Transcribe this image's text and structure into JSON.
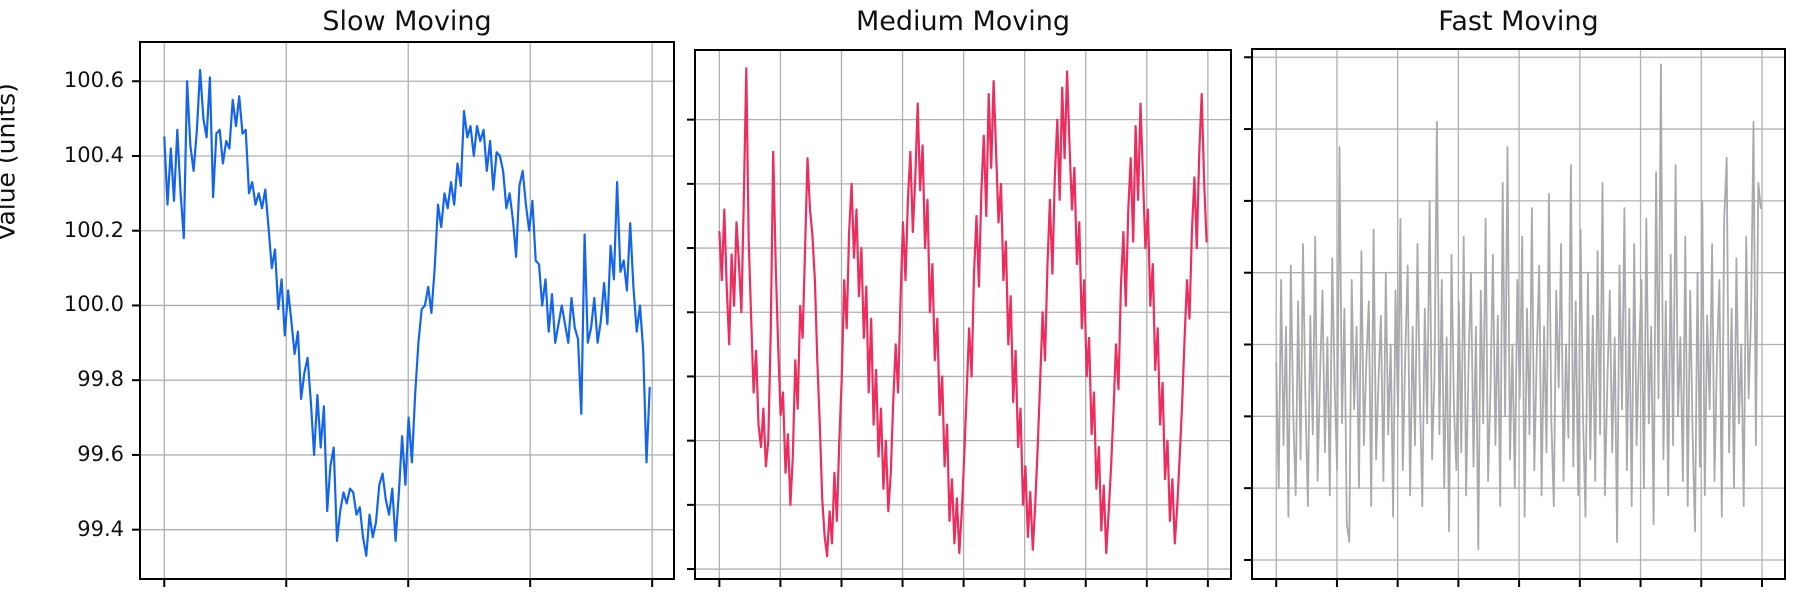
{
  "figure": {
    "background": "#ffffff"
  },
  "y_axis": {
    "label": "Value (units)",
    "tick_labels": [
      "100.6",
      "100.4",
      "100.2",
      "100.0",
      "99.8",
      "99.6",
      "99.4"
    ]
  },
  "grid": {
    "color": "#b0b0b0"
  },
  "spine_color": "#000000",
  "chart_data": [
    {
      "type": "line",
      "title": "Slow Moving",
      "color": "#1565ec",
      "line_width": 2.2,
      "x_count": 200,
      "xtick_step": 50,
      "ylim": [
        99.268,
        100.705
      ],
      "yticks": [
        99.4,
        99.6,
        99.8,
        100.0,
        100.2,
        100.4,
        100.6
      ],
      "ytick_labels_visible": true,
      "grid_on": true,
      "legend": "none",
      "values": [
        100.45,
        100.27,
        100.42,
        100.28,
        100.47,
        100.3,
        100.18,
        100.6,
        100.43,
        100.36,
        100.47,
        100.63,
        100.5,
        100.45,
        100.61,
        100.29,
        100.46,
        100.47,
        100.38,
        100.44,
        100.42,
        100.55,
        100.48,
        100.56,
        100.46,
        100.47,
        100.3,
        100.33,
        100.27,
        100.3,
        100.26,
        100.31,
        100.21,
        100.1,
        100.15,
        99.99,
        100.07,
        99.92,
        100.04,
        99.96,
        99.87,
        99.93,
        99.75,
        99.82,
        99.86,
        99.74,
        99.6,
        99.76,
        99.62,
        99.73,
        99.45,
        99.57,
        99.62,
        99.37,
        99.45,
        99.5,
        99.47,
        99.51,
        99.5,
        99.44,
        99.46,
        99.38,
        99.33,
        99.44,
        99.38,
        99.42,
        99.52,
        99.55,
        99.48,
        99.44,
        99.51,
        99.37,
        99.5,
        99.65,
        99.52,
        99.7,
        99.58,
        99.76,
        99.9,
        99.99,
        100.0,
        100.05,
        99.98,
        100.1,
        100.27,
        100.21,
        100.3,
        100.26,
        100.33,
        100.27,
        100.38,
        100.32,
        100.52,
        100.45,
        100.48,
        100.4,
        100.48,
        100.44,
        100.47,
        100.36,
        100.44,
        100.31,
        100.41,
        100.4,
        100.36,
        100.26,
        100.3,
        100.23,
        100.13,
        100.32,
        100.36,
        100.27,
        100.2,
        100.28,
        100.12,
        100.11,
        100.0,
        100.07,
        99.93,
        100.03,
        99.9,
        99.95,
        100.0,
        99.95,
        99.9,
        100.02,
        99.94,
        99.91,
        99.71,
        100.19,
        99.9,
        99.94,
        100.02,
        99.9,
        99.96,
        100.06,
        99.95,
        100.16,
        100.07,
        100.33,
        100.09,
        100.12,
        100.04,
        100.22,
        100.05,
        99.93,
        100.0,
        99.88,
        99.58,
        99.78
      ]
    },
    {
      "type": "line",
      "title": "Medium Moving",
      "color": "#ec2d5e",
      "line_width": 2.2,
      "x_count": 400,
      "xtick_step": 50,
      "ylim": [
        99.369,
        101.017
      ],
      "yticks": [
        99.4,
        99.6,
        99.8,
        100.0,
        100.2,
        100.4,
        100.6,
        100.8
      ],
      "ytick_labels_visible": false,
      "grid_on": true,
      "legend": "none",
      "values": [
        100.45,
        100.3,
        100.52,
        100.28,
        100.1,
        100.38,
        100.22,
        100.48,
        100.35,
        100.2,
        100.55,
        100.96,
        100.42,
        100.18,
        99.95,
        100.08,
        99.85,
        99.78,
        99.9,
        99.72,
        99.8,
        100.15,
        100.7,
        100.35,
        100.1,
        99.88,
        99.95,
        99.7,
        99.82,
        99.6,
        99.75,
        100.05,
        99.9,
        100.22,
        100.12,
        100.4,
        100.68,
        100.52,
        100.44,
        100.3,
        100.05,
        99.85,
        99.62,
        99.5,
        99.44,
        99.58,
        99.48,
        99.7,
        99.55,
        99.8,
        100.0,
        100.3,
        100.15,
        100.45,
        100.6,
        100.37,
        100.52,
        100.25,
        100.4,
        100.12,
        100.28,
        99.95,
        100.18,
        99.85,
        100.02,
        99.75,
        99.9,
        99.65,
        99.8,
        99.58,
        99.7,
        99.92,
        100.1,
        99.95,
        100.25,
        100.48,
        100.3,
        100.55,
        100.7,
        100.45,
        100.62,
        100.85,
        100.58,
        100.72,
        100.4,
        100.55,
        100.2,
        100.35,
        100.05,
        100.18,
        99.88,
        100.0,
        99.72,
        99.85,
        99.55,
        99.68,
        99.48,
        99.62,
        99.45,
        99.58,
        99.75,
        99.95,
        100.15,
        100.0,
        100.32,
        100.5,
        100.28,
        100.58,
        100.75,
        100.5,
        100.88,
        100.65,
        100.92,
        100.7,
        100.48,
        100.6,
        100.3,
        100.42,
        100.1,
        100.25,
        99.92,
        100.08,
        99.78,
        99.9,
        99.6,
        99.72,
        99.5,
        99.64,
        99.46,
        99.6,
        99.78,
        99.98,
        100.2,
        100.05,
        100.35,
        100.55,
        100.32,
        100.62,
        100.8,
        100.55,
        100.9,
        100.68,
        100.95,
        100.72,
        100.52,
        100.65,
        100.35,
        100.48,
        100.15,
        100.3,
        100.0,
        100.12,
        99.82,
        99.95,
        99.65,
        99.78,
        99.52,
        99.66,
        99.45,
        99.58,
        99.72,
        99.9,
        100.1,
        99.96,
        100.28,
        100.45,
        100.22,
        100.52,
        100.68,
        100.42,
        100.78,
        100.55,
        100.85,
        100.62,
        100.4,
        100.52,
        100.22,
        100.35,
        100.02,
        100.15,
        99.85,
        99.98,
        99.68,
        99.8,
        99.55,
        99.68,
        99.48,
        99.6,
        99.75,
        99.92,
        100.12,
        100.3,
        100.18,
        100.45,
        100.62,
        100.4,
        100.7,
        100.88,
        100.6,
        100.42
      ]
    },
    {
      "type": "line",
      "title": "Fast Moving",
      "color": "#aaaaae",
      "line_width": 1.8,
      "x_count": 400,
      "xtick_step": 50,
      "ylim": [
        99.347,
        100.823
      ],
      "yticks": [
        99.4,
        99.6,
        99.8,
        100.0,
        100.2,
        100.4,
        100.6,
        100.8
      ],
      "ytick_labels_visible": false,
      "grid_on": true,
      "legend": "none",
      "values": [
        99.95,
        99.6,
        100.18,
        99.72,
        100.05,
        99.52,
        100.22,
        99.8,
        99.58,
        100.12,
        99.68,
        100.28,
        99.85,
        99.55,
        100.08,
        99.75,
        100.3,
        99.62,
        99.92,
        100.15,
        99.7,
        100.02,
        99.58,
        100.24,
        99.88,
        99.65,
        100.55,
        99.78,
        100.1,
        99.5,
        99.45,
        100.18,
        99.82,
        100.05,
        99.6,
        100.26,
        99.72,
        99.95,
        100.12,
        99.55,
        100.32,
        99.68,
        99.9,
        100.08,
        99.62,
        100.2,
        99.75,
        100.0,
        99.52,
        100.15,
        99.8,
        100.35,
        99.65,
        99.98,
        100.22,
        99.58,
        100.05,
        99.72,
        100.28,
        99.85,
        99.55,
        100.1,
        99.78,
        100.4,
        99.68,
        99.92,
        100.62,
        99.75,
        100.18,
        99.6,
        100.02,
        99.48,
        100.25,
        99.82,
        99.65,
        100.12,
        99.7,
        100.3,
        99.58,
        99.95,
        100.2,
        99.66,
        100.05,
        99.43,
        100.15,
        99.78,
        100.35,
        99.62,
        99.88,
        100.25,
        99.72,
        100.08,
        99.55,
        100.45,
        99.8,
        100.55,
        99.68,
        100.0,
        99.6,
        100.18,
        99.85,
        100.3,
        99.52,
        100.1,
        99.75,
        100.38,
        99.65,
        99.98,
        100.22,
        99.58,
        100.05,
        99.7,
        100.42,
        99.78,
        99.55,
        100.15,
        99.88,
        100.28,
        99.62,
        100.0,
        99.74,
        100.5,
        99.66,
        100.12,
        99.58,
        100.32,
        99.8,
        99.52,
        100.2,
        99.68,
        100.08,
        99.62,
        100.26,
        99.75,
        100.45,
        99.58,
        99.9,
        100.15,
        99.7,
        100.02,
        99.45,
        100.22,
        99.82,
        100.38,
        99.65,
        100.1,
        99.55,
        100.28,
        99.72,
        99.98,
        100.18,
        99.6,
        100.35,
        99.78,
        100.05,
        99.5,
        100.48,
        99.85,
        100.78,
        99.68,
        100.12,
        99.58,
        100.25,
        99.72,
        100.5,
        99.8,
        100.02,
        99.62,
        100.3,
        99.55,
        100.15,
        99.75,
        99.48,
        100.2,
        99.66,
        100.4,
        99.58,
        100.08,
        99.82,
        100.28,
        99.62,
        99.96,
        100.18,
        99.52,
        100.35,
        100.52,
        99.7,
        100.1,
        99.6,
        100.24,
        99.78,
        100.0,
        99.55,
        100.3,
        99.85,
        100.08,
        100.62,
        99.72,
        100.45,
        100.38
      ]
    }
  ]
}
